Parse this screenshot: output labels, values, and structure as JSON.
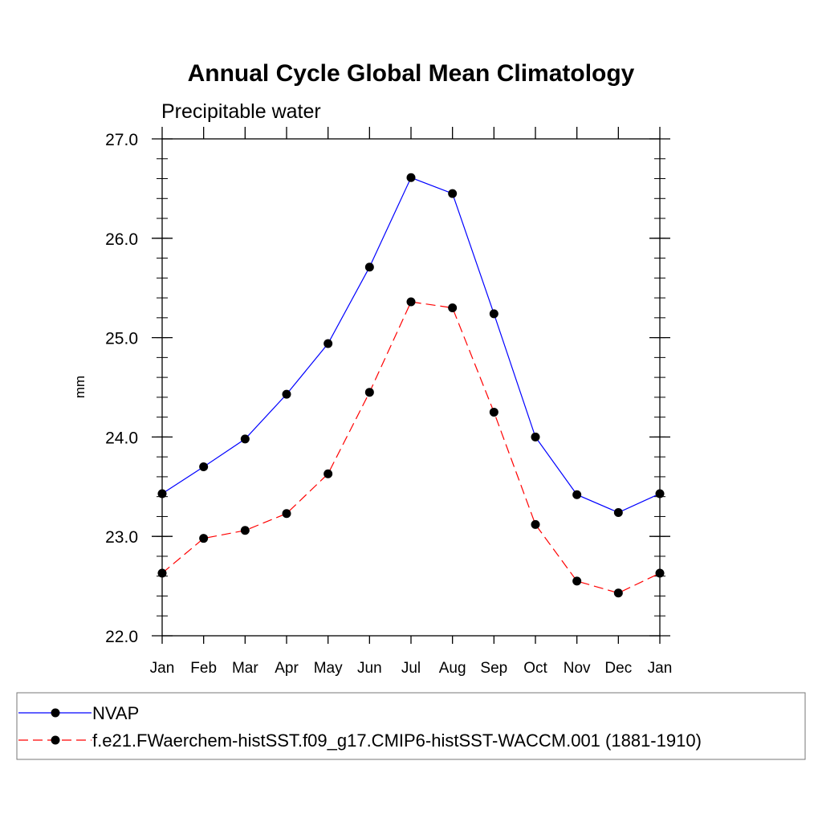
{
  "chart_data": {
    "type": "line",
    "title": "Annual Cycle Global Mean Climatology",
    "subtitle": "Precipitable water",
    "xlabel": "",
    "ylabel": "mm",
    "categories": [
      "Jan",
      "Feb",
      "Mar",
      "Apr",
      "May",
      "Jun",
      "Jul",
      "Aug",
      "Sep",
      "Oct",
      "Nov",
      "Dec",
      "Jan"
    ],
    "ylim": [
      22.0,
      27.0
    ],
    "yticks": [
      "22.0",
      "23.0",
      "24.0",
      "25.0",
      "26.0",
      "27.0"
    ],
    "grid": false,
    "legend_position": "bottom",
    "series": [
      {
        "name": "NVAP",
        "color": "#0000ff",
        "style": "solid",
        "marker": "circle",
        "values": [
          23.43,
          23.7,
          23.98,
          24.43,
          24.94,
          25.71,
          26.61,
          26.45,
          25.24,
          24.0,
          23.42,
          23.24,
          23.43
        ]
      },
      {
        "name": "f.e21.FWaerchem-histSST.f09_g17.CMIP6-histSST-WACCM.001 (1881-1910)",
        "color": "#ff0000",
        "style": "dashed",
        "marker": "circle",
        "values": [
          22.63,
          22.98,
          23.06,
          23.23,
          23.63,
          24.45,
          25.36,
          25.3,
          24.25,
          23.12,
          22.55,
          22.43,
          22.63
        ]
      }
    ]
  }
}
